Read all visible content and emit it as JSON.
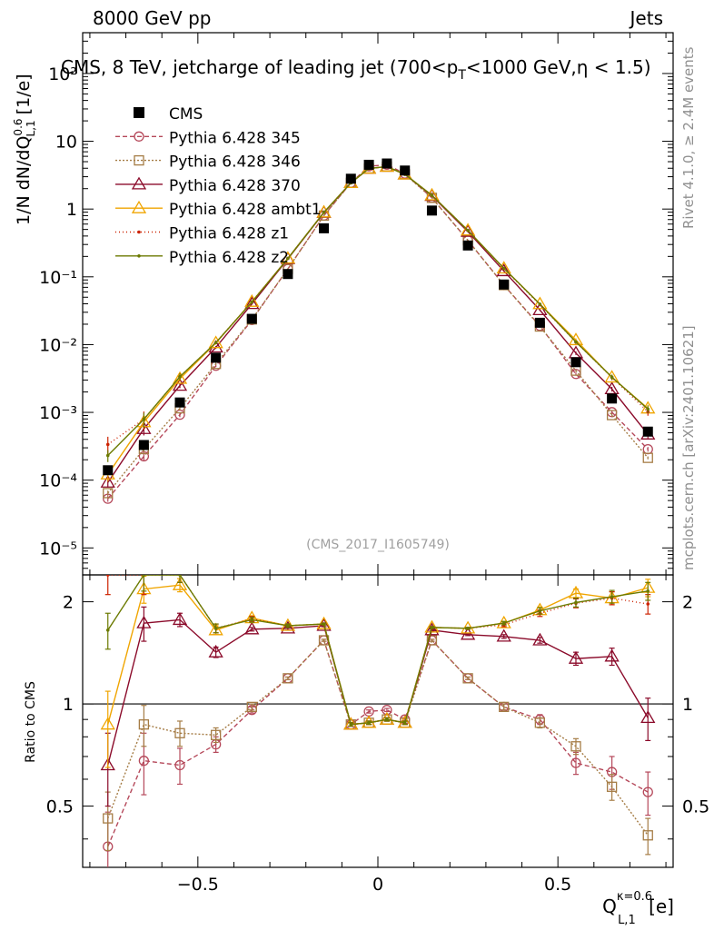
{
  "header": {
    "left": "8000 GeV pp",
    "right": "Jets",
    "title": "CMS, 8 TeV, jetcharge of leading jet (700<p",
    "title_sub": "T",
    "title_end": "<1000 GeV,η < 1.5)",
    "watermark": "(CMS_2017_I1605749)",
    "side_top": "Rivet 4.1.0, ≥ 2.4M events",
    "side_bottom": "mcplots.cern.ch [arXiv:2401.10621]"
  },
  "axes": {
    "ylabel_main_pre": "1/N dN/dQ",
    "ylabel_main_sup": "0.6",
    "ylabel_main_sub": "L,1",
    "ylabel_main_post": " [1/e]",
    "ylabel_ratio": "Ratio to CMS",
    "xlabel_main": "Q",
    "xlabel_sup": "κ=0.6",
    "xlabel_sub": "L,1",
    "xlabel_unit": " [e]",
    "x_ticks": [
      "−0.5",
      "0",
      "0.5"
    ],
    "y_ticks_main": [
      "10⁻⁵",
      "10⁻⁴",
      "10⁻³",
      "10⁻²",
      "10⁻¹",
      "1",
      "10",
      "10²"
    ],
    "y_ticks_ratio": [
      "0.5",
      "1",
      "2"
    ]
  },
  "chart_data": {
    "type": "scatter",
    "title": "CMS, 8 TeV, jetcharge of leading jet (700<pT<1000 GeV, η < 1.5)",
    "xlabel": "Q_{L,1}^{κ=0.6} [e]",
    "ylabel": "1/N dN/dQ_{L,1}^{0.6} [1/e]",
    "xlim": [
      -0.82,
      0.82
    ],
    "ylim": [
      4e-06,
      400
    ],
    "yscale": "log",
    "ratio_ylabel": "Ratio to CMS",
    "ratio_ylim": [
      0.33,
      2.4
    ],
    "x": [
      -0.75,
      -0.65,
      -0.55,
      -0.45,
      -0.35,
      -0.25,
      -0.15,
      -0.075,
      -0.025,
      0.025,
      0.075,
      0.15,
      0.25,
      0.35,
      0.45,
      0.55,
      0.65,
      0.75
    ],
    "data": {
      "name": "CMS",
      "color": "#000000",
      "values": [
        0.00014,
        0.00033,
        0.0014,
        0.0064,
        0.024,
        0.11,
        0.52,
        2.8,
        4.5,
        4.7,
        3.7,
        0.95,
        0.29,
        0.077,
        0.021,
        0.0055,
        0.0016,
        0.00052
      ]
    },
    "series": [
      {
        "name": "Pythia 6.428 345",
        "color": "#b5485a",
        "dash": "5,3",
        "marker": "circle",
        "ratio": [
          0.38,
          0.68,
          0.66,
          0.76,
          0.96,
          1.19,
          1.54,
          0.87,
          0.95,
          0.96,
          0.9,
          1.54,
          1.19,
          0.98,
          0.9,
          0.67,
          0.63,
          0.55
        ],
        "ratio_err": [
          0.1,
          0.14,
          0.08,
          0.04,
          0.02,
          0.01,
          0.01,
          0.01,
          0.01,
          0.01,
          0.01,
          0.01,
          0.01,
          0.02,
          0.03,
          0.05,
          0.07,
          0.08
        ]
      },
      {
        "name": "Pythia 6.428 346",
        "color": "#a57c45",
        "dash": "2,2",
        "marker": "square",
        "ratio": [
          0.46,
          0.87,
          0.82,
          0.81,
          0.98,
          1.19,
          1.54,
          0.87,
          0.88,
          0.9,
          0.88,
          1.54,
          1.19,
          0.98,
          0.88,
          0.75,
          0.57,
          0.41
        ],
        "ratio_err": [
          0.09,
          0.12,
          0.07,
          0.04,
          0.02,
          0.01,
          0.01,
          0.01,
          0.01,
          0.01,
          0.01,
          0.01,
          0.01,
          0.02,
          0.03,
          0.04,
          0.05,
          0.05
        ]
      },
      {
        "name": "Pythia 6.428 370",
        "color": "#8b0a2a",
        "dash": "",
        "marker": "triangle",
        "ratio": [
          0.66,
          1.73,
          1.77,
          1.42,
          1.66,
          1.67,
          1.7,
          0.87,
          0.88,
          0.9,
          0.88,
          1.65,
          1.6,
          1.58,
          1.54,
          1.36,
          1.38,
          0.91
        ],
        "ratio_err": [
          0.16,
          0.2,
          0.08,
          0.05,
          0.02,
          0.02,
          0.01,
          0.01,
          0.01,
          0.01,
          0.01,
          0.01,
          0.01,
          0.02,
          0.03,
          0.06,
          0.08,
          0.13
        ]
      },
      {
        "name": "Pythia 6.428 ambt1",
        "color": "#f0a500",
        "dash": "",
        "marker": "triangle",
        "ratio": [
          0.87,
          2.18,
          2.24,
          1.65,
          1.79,
          1.7,
          1.72,
          0.87,
          0.88,
          0.9,
          0.88,
          1.68,
          1.67,
          1.73,
          1.89,
          2.12,
          2.05,
          2.2
        ],
        "ratio_err": [
          0.22,
          0.2,
          0.1,
          0.05,
          0.03,
          0.02,
          0.01,
          0.01,
          0.01,
          0.01,
          0.01,
          0.01,
          0.01,
          0.02,
          0.04,
          0.06,
          0.09,
          0.13
        ]
      },
      {
        "name": "Pythia 6.428 z1",
        "color": "#cc2200",
        "dash": "1,3",
        "marker": "dot",
        "ratio": [
          2.4,
          2.4,
          2.4,
          1.67,
          1.78,
          1.7,
          1.72,
          0.87,
          0.88,
          0.9,
          0.88,
          1.68,
          1.67,
          1.71,
          1.85,
          1.98,
          2.05,
          1.97
        ],
        "ratio_err": [
          0.3,
          0.3,
          0.12,
          0.05,
          0.03,
          0.02,
          0.01,
          0.01,
          0.01,
          0.01,
          0.01,
          0.01,
          0.01,
          0.02,
          0.04,
          0.06,
          0.09,
          0.13
        ]
      },
      {
        "name": "Pythia 6.428 z2",
        "color": "#6b7a00",
        "dash": "",
        "marker": "dot",
        "ratio": [
          1.65,
          2.4,
          2.4,
          1.67,
          1.77,
          1.7,
          1.72,
          0.87,
          0.88,
          0.9,
          0.88,
          1.68,
          1.67,
          1.73,
          1.88,
          1.99,
          2.07,
          2.15
        ],
        "ratio_err": [
          0.2,
          0.25,
          0.12,
          0.05,
          0.03,
          0.02,
          0.01,
          0.01,
          0.01,
          0.01,
          0.01,
          0.01,
          0.01,
          0.02,
          0.04,
          0.06,
          0.09,
          0.13
        ]
      }
    ]
  }
}
